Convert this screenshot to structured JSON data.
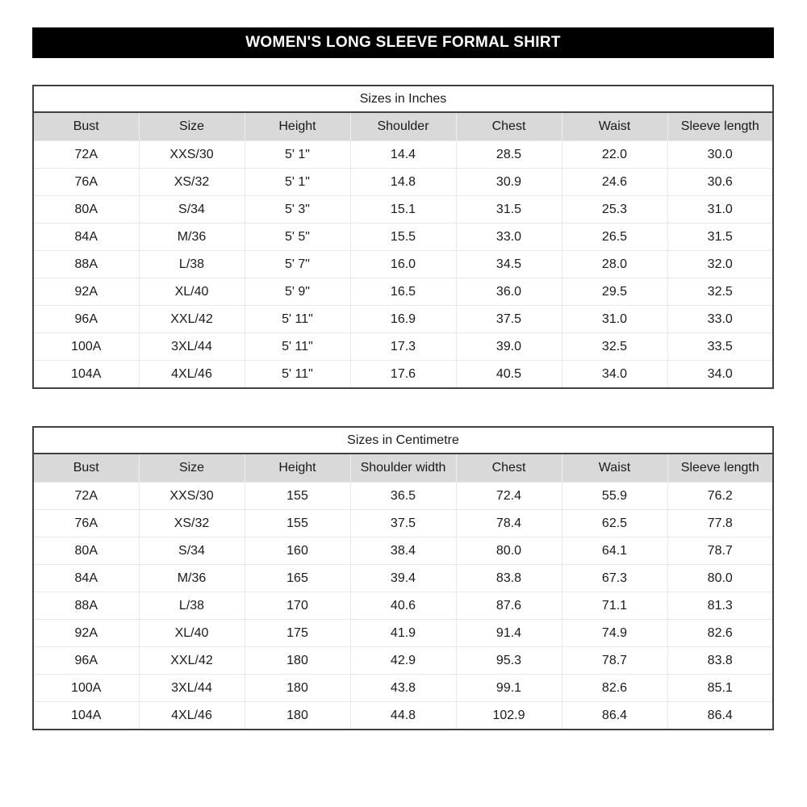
{
  "page_title": "WOMEN'S LONG SLEEVE FORMAL SHIRT",
  "colors": {
    "title_bar_bg": "#000000",
    "title_bar_text": "#ffffff",
    "header_bg": "#d9d9d9",
    "border_dark": "#404040",
    "grid_light": "#e7e7e7"
  },
  "tables": [
    {
      "title": "Sizes in Inches",
      "headers": [
        "Bust",
        "Size",
        "Height",
        "Shoulder",
        "Chest",
        "Waist",
        "Sleeve length"
      ],
      "rows": [
        [
          "72A",
          "XXS/30",
          "5' 1\"",
          "14.4",
          "28.5",
          "22.0",
          "30.0"
        ],
        [
          "76A",
          "XS/32",
          "5' 1\"",
          "14.8",
          "30.9",
          "24.6",
          "30.6"
        ],
        [
          "80A",
          "S/34",
          "5' 3\"",
          "15.1",
          "31.5",
          "25.3",
          "31.0"
        ],
        [
          "84A",
          "M/36",
          "5' 5\"",
          "15.5",
          "33.0",
          "26.5",
          "31.5"
        ],
        [
          "88A",
          "L/38",
          "5' 7\"",
          "16.0",
          "34.5",
          "28.0",
          "32.0"
        ],
        [
          "92A",
          "XL/40",
          "5' 9\"",
          "16.5",
          "36.0",
          "29.5",
          "32.5"
        ],
        [
          "96A",
          "XXL/42",
          "5' 11\"",
          "16.9",
          "37.5",
          "31.0",
          "33.0"
        ],
        [
          "100A",
          "3XL/44",
          "5' 11\"",
          "17.3",
          "39.0",
          "32.5",
          "33.5"
        ],
        [
          "104A",
          "4XL/46",
          "5' 11\"",
          "17.6",
          "40.5",
          "34.0",
          "34.0"
        ]
      ]
    },
    {
      "title": "Sizes in Centimetre",
      "headers": [
        "Bust",
        "Size",
        "Height",
        "Shoulder width",
        "Chest",
        "Waist",
        "Sleeve length"
      ],
      "rows": [
        [
          "72A",
          "XXS/30",
          "155",
          "36.5",
          "72.4",
          "55.9",
          "76.2"
        ],
        [
          "76A",
          "XS/32",
          "155",
          "37.5",
          "78.4",
          "62.5",
          "77.8"
        ],
        [
          "80A",
          "S/34",
          "160",
          "38.4",
          "80.0",
          "64.1",
          "78.7"
        ],
        [
          "84A",
          "M/36",
          "165",
          "39.4",
          "83.8",
          "67.3",
          "80.0"
        ],
        [
          "88A",
          "L/38",
          "170",
          "40.6",
          "87.6",
          "71.1",
          "81.3"
        ],
        [
          "92A",
          "XL/40",
          "175",
          "41.9",
          "91.4",
          "74.9",
          "82.6"
        ],
        [
          "96A",
          "XXL/42",
          "180",
          "42.9",
          "95.3",
          "78.7",
          "83.8"
        ],
        [
          "100A",
          "3XL/44",
          "180",
          "43.8",
          "99.1",
          "82.6",
          "85.1"
        ],
        [
          "104A",
          "4XL/46",
          "180",
          "44.8",
          "102.9",
          "86.4",
          "86.4"
        ]
      ]
    }
  ]
}
